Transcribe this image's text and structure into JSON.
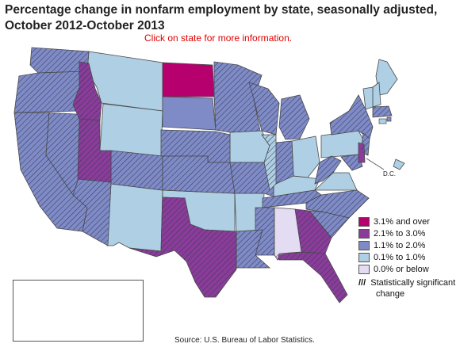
{
  "title": "Percentage change in nonfarm employment by state, seasonally adjusted, October 2012-October 2013",
  "hint": "Click on state for more information.",
  "source": "Source:  U.S. Bureau of Labor Statistics.",
  "dc_label": "D.C.",
  "legend": {
    "items": [
      {
        "label": "3.1% and over",
        "color": "#b5006e"
      },
      {
        "label": "2.1% to 3.0%",
        "color": "#8b3c9a"
      },
      {
        "label": "1.1% to 2.0%",
        "color": "#7e8bc7"
      },
      {
        "label": "0.1% to 1.0%",
        "color": "#aecfe4"
      },
      {
        "label": "0.0% or below",
        "color": "#e3dcf2"
      }
    ],
    "significance_mark": "///",
    "significance_line1": "Statistically significant",
    "significance_line2": "change"
  },
  "colors": {
    "bin1": "#b5006e",
    "bin2": "#8b3c9a",
    "bin3": "#7e8bc7",
    "bin4": "#aecfe4",
    "bin5": "#e3dcf2",
    "border": "#4a4a4a"
  }
}
